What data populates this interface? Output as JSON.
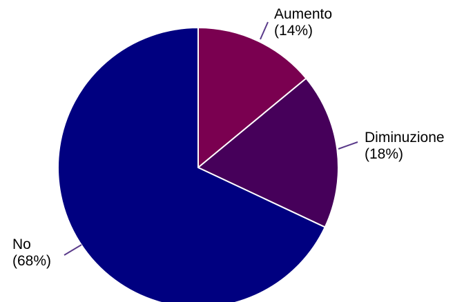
{
  "chart_data": {
    "type": "pie",
    "slices": [
      {
        "label": "Aumento",
        "percent_label": "(14%)",
        "value": 14,
        "color": "#7a0050"
      },
      {
        "label": "Diminuzione",
        "percent_label": "(18%)",
        "value": 18,
        "color": "#46005a"
      },
      {
        "label": "No",
        "percent_label": "(68%)",
        "value": 68,
        "color": "#000080"
      }
    ],
    "start_angle_deg": 0,
    "direction": "clockwise",
    "legend": "none",
    "leader_line_color": "#5a3a8a"
  }
}
